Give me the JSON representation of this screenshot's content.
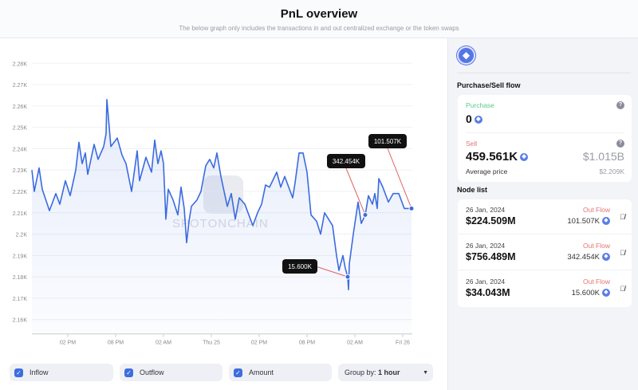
{
  "header": {
    "title": "PnL overview",
    "subtitle": "The below graph only includes the transactions in and out centralized exchange or the token swaps"
  },
  "watermark": "SPOTONCHAIN",
  "chart_data": {
    "type": "line",
    "title": "PnL overview",
    "xlabel": "",
    "ylabel": "",
    "x_unit": "hours since 24 Jan 00:00",
    "ylim": [
      2160,
      2280
    ],
    "y_ticks": [
      2160,
      2170,
      2180,
      2190,
      2200,
      2210,
      2220,
      2230,
      2240,
      2250,
      2260,
      2270,
      2280
    ],
    "y_tick_labels": [
      "2.16K",
      "2.17K",
      "2.18K",
      "2.19K",
      "2.2K",
      "2.21K",
      "2.22K",
      "2.23K",
      "2.24K",
      "2.25K",
      "2.26K",
      "2.27K",
      "2.28K"
    ],
    "xlim": [
      9.5,
      57.2
    ],
    "x_ticks": [
      14,
      20,
      26,
      32,
      38,
      44,
      50,
      56
    ],
    "x_tick_labels": [
      "02 PM",
      "08 PM",
      "02 AM",
      "Thu 25",
      "02 PM",
      "08 PM",
      "02 AM",
      "Fri 26"
    ],
    "grid": true,
    "color": "#3b6be0",
    "points": [
      [
        9.5,
        2230
      ],
      [
        9.8,
        2220
      ],
      [
        10.4,
        2231
      ],
      [
        10.8,
        2221
      ],
      [
        11.7,
        2211
      ],
      [
        12.5,
        2219
      ],
      [
        13,
        2214
      ],
      [
        13.7,
        2225
      ],
      [
        14.3,
        2218
      ],
      [
        15,
        2230
      ],
      [
        15.4,
        2243
      ],
      [
        15.8,
        2233
      ],
      [
        16.2,
        2238
      ],
      [
        16.5,
        2228
      ],
      [
        17.3,
        2242
      ],
      [
        17.8,
        2235
      ],
      [
        18.5,
        2241
      ],
      [
        18.8,
        2247
      ],
      [
        18.9,
        2263
      ],
      [
        19.2,
        2250
      ],
      [
        19.4,
        2241
      ],
      [
        20.2,
        2245
      ],
      [
        20.8,
        2237
      ],
      [
        21.3,
        2233
      ],
      [
        22,
        2220
      ],
      [
        22.7,
        2239
      ],
      [
        23,
        2225
      ],
      [
        23.8,
        2236
      ],
      [
        24.5,
        2229
      ],
      [
        24.9,
        2244
      ],
      [
        25.3,
        2233
      ],
      [
        25.7,
        2239
      ],
      [
        26,
        2233
      ],
      [
        26.3,
        2207
      ],
      [
        26.6,
        2221
      ],
      [
        27.2,
        2216
      ],
      [
        27.8,
        2209
      ],
      [
        28.2,
        2222
      ],
      [
        28.6,
        2212
      ],
      [
        28.9,
        2196
      ],
      [
        29.2,
        2206
      ],
      [
        29.5,
        2213
      ],
      [
        30.2,
        2216
      ],
      [
        30.7,
        2220
      ],
      [
        31.3,
        2232
      ],
      [
        31.8,
        2235
      ],
      [
        32.3,
        2231
      ],
      [
        32.7,
        2238
      ],
      [
        33.2,
        2227
      ],
      [
        34,
        2213
      ],
      [
        34.5,
        2219
      ],
      [
        35,
        2207
      ],
      [
        35.5,
        2217
      ],
      [
        36.2,
        2214
      ],
      [
        37.2,
        2204
      ],
      [
        37.8,
        2210
      ],
      [
        38.3,
        2214
      ],
      [
        38.8,
        2223
      ],
      [
        39.3,
        2222
      ],
      [
        40.2,
        2229
      ],
      [
        40.7,
        2222
      ],
      [
        41.2,
        2227
      ],
      [
        42.2,
        2217
      ],
      [
        42.5,
        2224
      ],
      [
        43,
        2238
      ],
      [
        43.5,
        2238
      ],
      [
        44,
        2229
      ],
      [
        44.5,
        2209
      ],
      [
        45.2,
        2206
      ],
      [
        45.7,
        2200
      ],
      [
        46.2,
        2210
      ],
      [
        46.7,
        2207
      ],
      [
        47.2,
        2204
      ],
      [
        47.7,
        2190
      ],
      [
        48,
        2183
      ],
      [
        48.5,
        2190
      ],
      [
        48.8,
        2184
      ],
      [
        49.1,
        2180
      ],
      [
        49.2,
        2174
      ],
      [
        49.3,
        2186
      ],
      [
        49.8,
        2200
      ],
      [
        50.4,
        2215
      ],
      [
        50.8,
        2205
      ],
      [
        51.3,
        2209
      ],
      [
        51.7,
        2218
      ],
      [
        52.2,
        2214
      ],
      [
        52.5,
        2219
      ],
      [
        52.8,
        2212
      ],
      [
        53,
        2226
      ],
      [
        53.5,
        2222
      ],
      [
        54.2,
        2215
      ],
      [
        54.8,
        2219
      ],
      [
        55.5,
        2219
      ],
      [
        56.2,
        2212
      ],
      [
        57.1,
        2212
      ]
    ],
    "annotations": [
      {
        "x": 49.1,
        "y": 2180,
        "label": "15.600K"
      },
      {
        "x": 51.3,
        "y": 2209,
        "label": "342.454K"
      },
      {
        "x": 57.1,
        "y": 2212,
        "label": "101.507K"
      }
    ]
  },
  "controls": {
    "inflow": "Inflow",
    "outflow": "Outflow",
    "amount": "Amount",
    "group_by_label": "Group by:",
    "group_by_value": "1 hour"
  },
  "side": {
    "flow_title": "Purchase/Sell flow",
    "purchase_label": "Purchase",
    "purchase_value": "0",
    "sell_label": "Sell",
    "sell_value": "459.561K",
    "sell_usd": "$1.015B",
    "avg_label": "Average price",
    "avg_value": "$2.209K",
    "node_title": "Node list",
    "colors": {
      "purchase": "#5cc98b",
      "sell": "#e57373"
    },
    "nodes": [
      {
        "date": "26 Jan, 2024",
        "usd": "$224.509M",
        "type": "Out Flow",
        "amount": "101.507K"
      },
      {
        "date": "26 Jan, 2024",
        "usd": "$756.489M",
        "type": "Out Flow",
        "amount": "342.454K"
      },
      {
        "date": "26 Jan, 2024",
        "usd": "$34.043M",
        "type": "Out Flow",
        "amount": "15.600K"
      }
    ]
  }
}
